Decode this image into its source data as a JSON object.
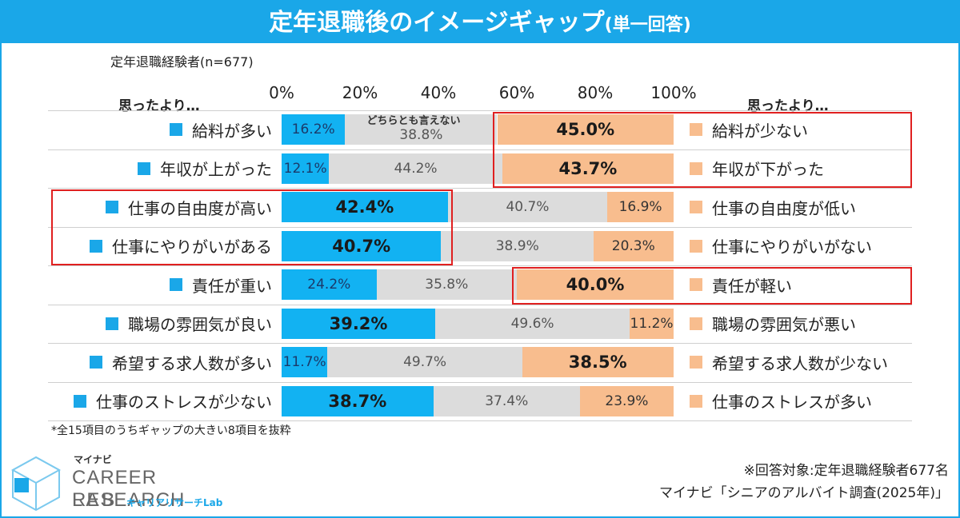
{
  "title": {
    "main": "定年退職後のイメージギャップ",
    "sub": "(単一回答)"
  },
  "respondents": "定年退職経験者(n=677)",
  "side_header_left": "思ったより…",
  "side_header_right": "思ったより…",
  "neither_label": "どちらとも言えない",
  "note": "*全15項目のうちギャップの大きい8項目を抜粋",
  "source": {
    "line1": "※回答対象:定年退職経験者677名",
    "line2": "マイナビ「シニアのアルバイト調査(2025年)」"
  },
  "logo": {
    "brand": "マイナビ",
    "line1": "CAREER RESEARCH",
    "line2": "LAB",
    "kana": "キャリアリサーチLab"
  },
  "colors": {
    "blue": "#12b2f2",
    "gray": "#dcdcdc",
    "orange": "#f8bd8e",
    "highlight": "#e02020",
    "accent": "#1aa7e8"
  },
  "chart_data": {
    "type": "bar",
    "orientation": "horizontal-stacked-100",
    "title": "定年退職後のイメージギャップ(単一回答)",
    "x_ticks": [
      "0%",
      "20%",
      "40%",
      "60%",
      "80%",
      "100%"
    ],
    "xlim": [
      0,
      100
    ],
    "series": [
      {
        "name": "left",
        "color": "#12b2f2"
      },
      {
        "name": "どちらとも言えない",
        "color": "#dcdcdc"
      },
      {
        "name": "right",
        "color": "#f8bd8e"
      }
    ],
    "rows": [
      {
        "left_label": "給料が多い",
        "right_label": "給料が少ない",
        "left": 16.2,
        "neutral": 38.8,
        "right": 45.0,
        "left_text": "16.2%",
        "neutral_text": "38.8%",
        "right_text": "45.0%"
      },
      {
        "left_label": "年収が上がった",
        "right_label": "年収が下がった",
        "left": 12.1,
        "neutral": 44.2,
        "right": 43.7,
        "left_text": "12.1%",
        "neutral_text": "44.2%",
        "right_text": "43.7%"
      },
      {
        "left_label": "仕事の自由度が高い",
        "right_label": "仕事の自由度が低い",
        "left": 42.4,
        "neutral": 40.7,
        "right": 16.9,
        "left_text": "42.4%",
        "neutral_text": "40.7%",
        "right_text": "16.9%"
      },
      {
        "left_label": "仕事にやりがいがある",
        "right_label": "仕事にやりがいがない",
        "left": 40.7,
        "neutral": 38.9,
        "right": 20.3,
        "left_text": "40.7%",
        "neutral_text": "38.9%",
        "right_text": "20.3%"
      },
      {
        "left_label": "責任が重い",
        "right_label": "責任が軽い",
        "left": 24.2,
        "neutral": 35.8,
        "right": 40.0,
        "left_text": "24.2%",
        "neutral_text": "35.8%",
        "right_text": "40.0%"
      },
      {
        "left_label": "職場の雰囲気が良い",
        "right_label": "職場の雰囲気が悪い",
        "left": 39.2,
        "neutral": 49.6,
        "right": 11.2,
        "left_text": "39.2%",
        "neutral_text": "49.6%",
        "right_text": "11.2%"
      },
      {
        "left_label": "希望する求人数が多い",
        "right_label": "希望する求人数が少ない",
        "left": 11.7,
        "neutral": 49.7,
        "right": 38.5,
        "left_text": "11.7%",
        "neutral_text": "49.7%",
        "right_text": "38.5%"
      },
      {
        "left_label": "仕事のストレスが少ない",
        "right_label": "仕事のストレスが多い",
        "left": 38.7,
        "neutral": 37.4,
        "right": 23.9,
        "left_text": "38.7%",
        "neutral_text": "37.4%",
        "right_text": "23.9%"
      }
    ],
    "emphasized": [
      {
        "row": 0,
        "side": "right"
      },
      {
        "row": 1,
        "side": "right"
      },
      {
        "row": 2,
        "side": "left"
      },
      {
        "row": 3,
        "side": "left"
      },
      {
        "row": 4,
        "side": "right"
      },
      {
        "row": 5,
        "side": "left"
      },
      {
        "row": 6,
        "side": "right"
      },
      {
        "row": 7,
        "side": "left"
      }
    ],
    "highlight_boxes": [
      {
        "rows": [
          0,
          1
        ],
        "side": "right"
      },
      {
        "rows": [
          2,
          3
        ],
        "side": "left"
      },
      {
        "rows": [
          4
        ],
        "side": "right"
      }
    ]
  }
}
